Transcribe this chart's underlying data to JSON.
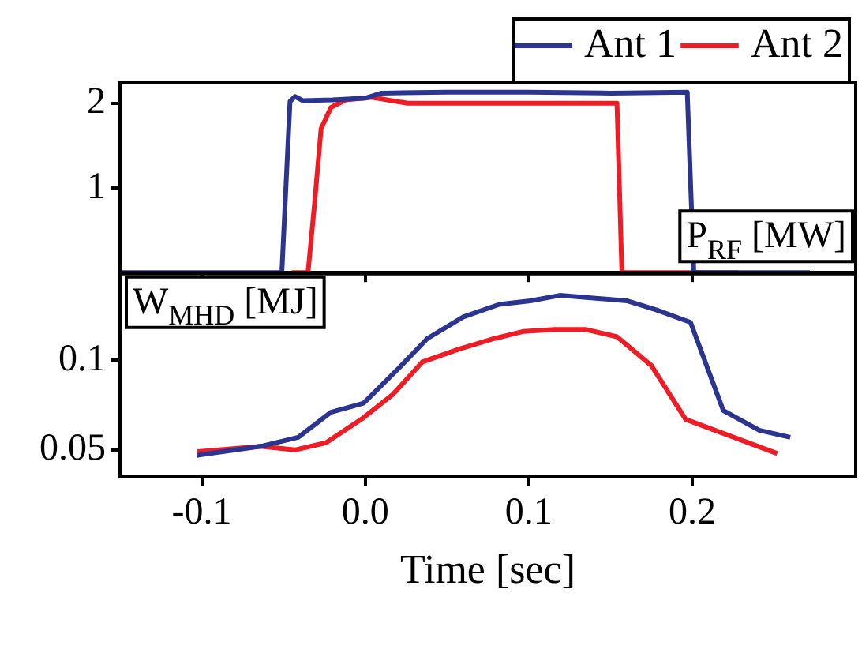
{
  "chart_data": [
    {
      "type": "line",
      "xlim": [
        -0.15,
        0.3
      ],
      "xticks": [
        -0.1,
        0.0,
        0.1,
        0.2
      ],
      "ylim": [
        0,
        2.25
      ],
      "yticks": [
        1,
        2
      ],
      "tick_labels": "y",
      "legend": "top right",
      "grid": false,
      "marker": "none",
      "line_style": "solid",
      "annotations": [
        "P$_{RF}$ [MW]"
      ],
      "series": [
        {
          "name": "Ant 1",
          "color": "#2b3590",
          "x": [
            -0.15,
            -0.051,
            -0.046,
            -0.043,
            -0.038,
            -0.02,
            0.0,
            0.01,
            0.05,
            0.1,
            0.15,
            0.197,
            0.201,
            0.272
          ],
          "values": [
            0,
            0,
            2.02,
            2.08,
            2.03,
            2.04,
            2.06,
            2.12,
            2.13,
            2.13,
            2.12,
            2.13,
            0,
            0
          ]
        },
        {
          "name": "Ant 2",
          "color": "#ee1c25",
          "x": [
            -0.045,
            -0.035,
            -0.031,
            -0.027,
            -0.021,
            -0.012,
            0.004,
            0.026,
            0.08,
            0.154,
            0.157,
            0.228
          ],
          "values": [
            0,
            0,
            0.81,
            1.7,
            1.95,
            2.04,
            2.07,
            2.0,
            2.0,
            2.0,
            0,
            0
          ]
        }
      ]
    },
    {
      "type": "line",
      "xlim": [
        -0.15,
        0.3
      ],
      "xticks": [
        {
          "value": -0.1,
          "label": "-0.1"
        },
        {
          "value": 0,
          "label": "0.0"
        },
        {
          "value": 0.1,
          "label": "0.1"
        },
        {
          "value": 0.2,
          "label": "0.2"
        }
      ],
      "ylim": [
        0.035,
        0.148
      ],
      "yticks": [
        0.05,
        0.1
      ],
      "xlabel": "Time [sec]",
      "legend": false,
      "grid": false,
      "marker": "none",
      "line_style": "solid",
      "annotations": [
        "W$_{MHD}$ [MJ]"
      ],
      "series": [
        {
          "color": "#2b3590",
          "x": [
            -0.103,
            -0.064,
            -0.041,
            -0.021,
            -0.001,
            0.02,
            0.038,
            0.06,
            0.082,
            0.101,
            0.119,
            0.16,
            0.178,
            0.199,
            0.219,
            0.241,
            0.26
          ],
          "values": [
            0.047,
            0.052,
            0.057,
            0.071,
            0.076,
            0.095,
            0.112,
            0.124,
            0.131,
            0.133,
            0.136,
            0.133,
            0.128,
            0.121,
            0.072,
            0.061,
            0.057
          ]
        },
        {
          "color": "#ee1c25",
          "x": [
            -0.103,
            -0.064,
            -0.043,
            -0.024,
            -0.001,
            0.017,
            0.035,
            0.057,
            0.079,
            0.097,
            0.116,
            0.135,
            0.154,
            0.175,
            0.196,
            0.252
          ],
          "values": [
            0.049,
            0.052,
            0.05,
            0.054,
            0.068,
            0.081,
            0.099,
            0.106,
            0.112,
            0.116,
            0.117,
            0.117,
            0.113,
            0.097,
            0.067,
            0.048
          ]
        }
      ]
    }
  ]
}
